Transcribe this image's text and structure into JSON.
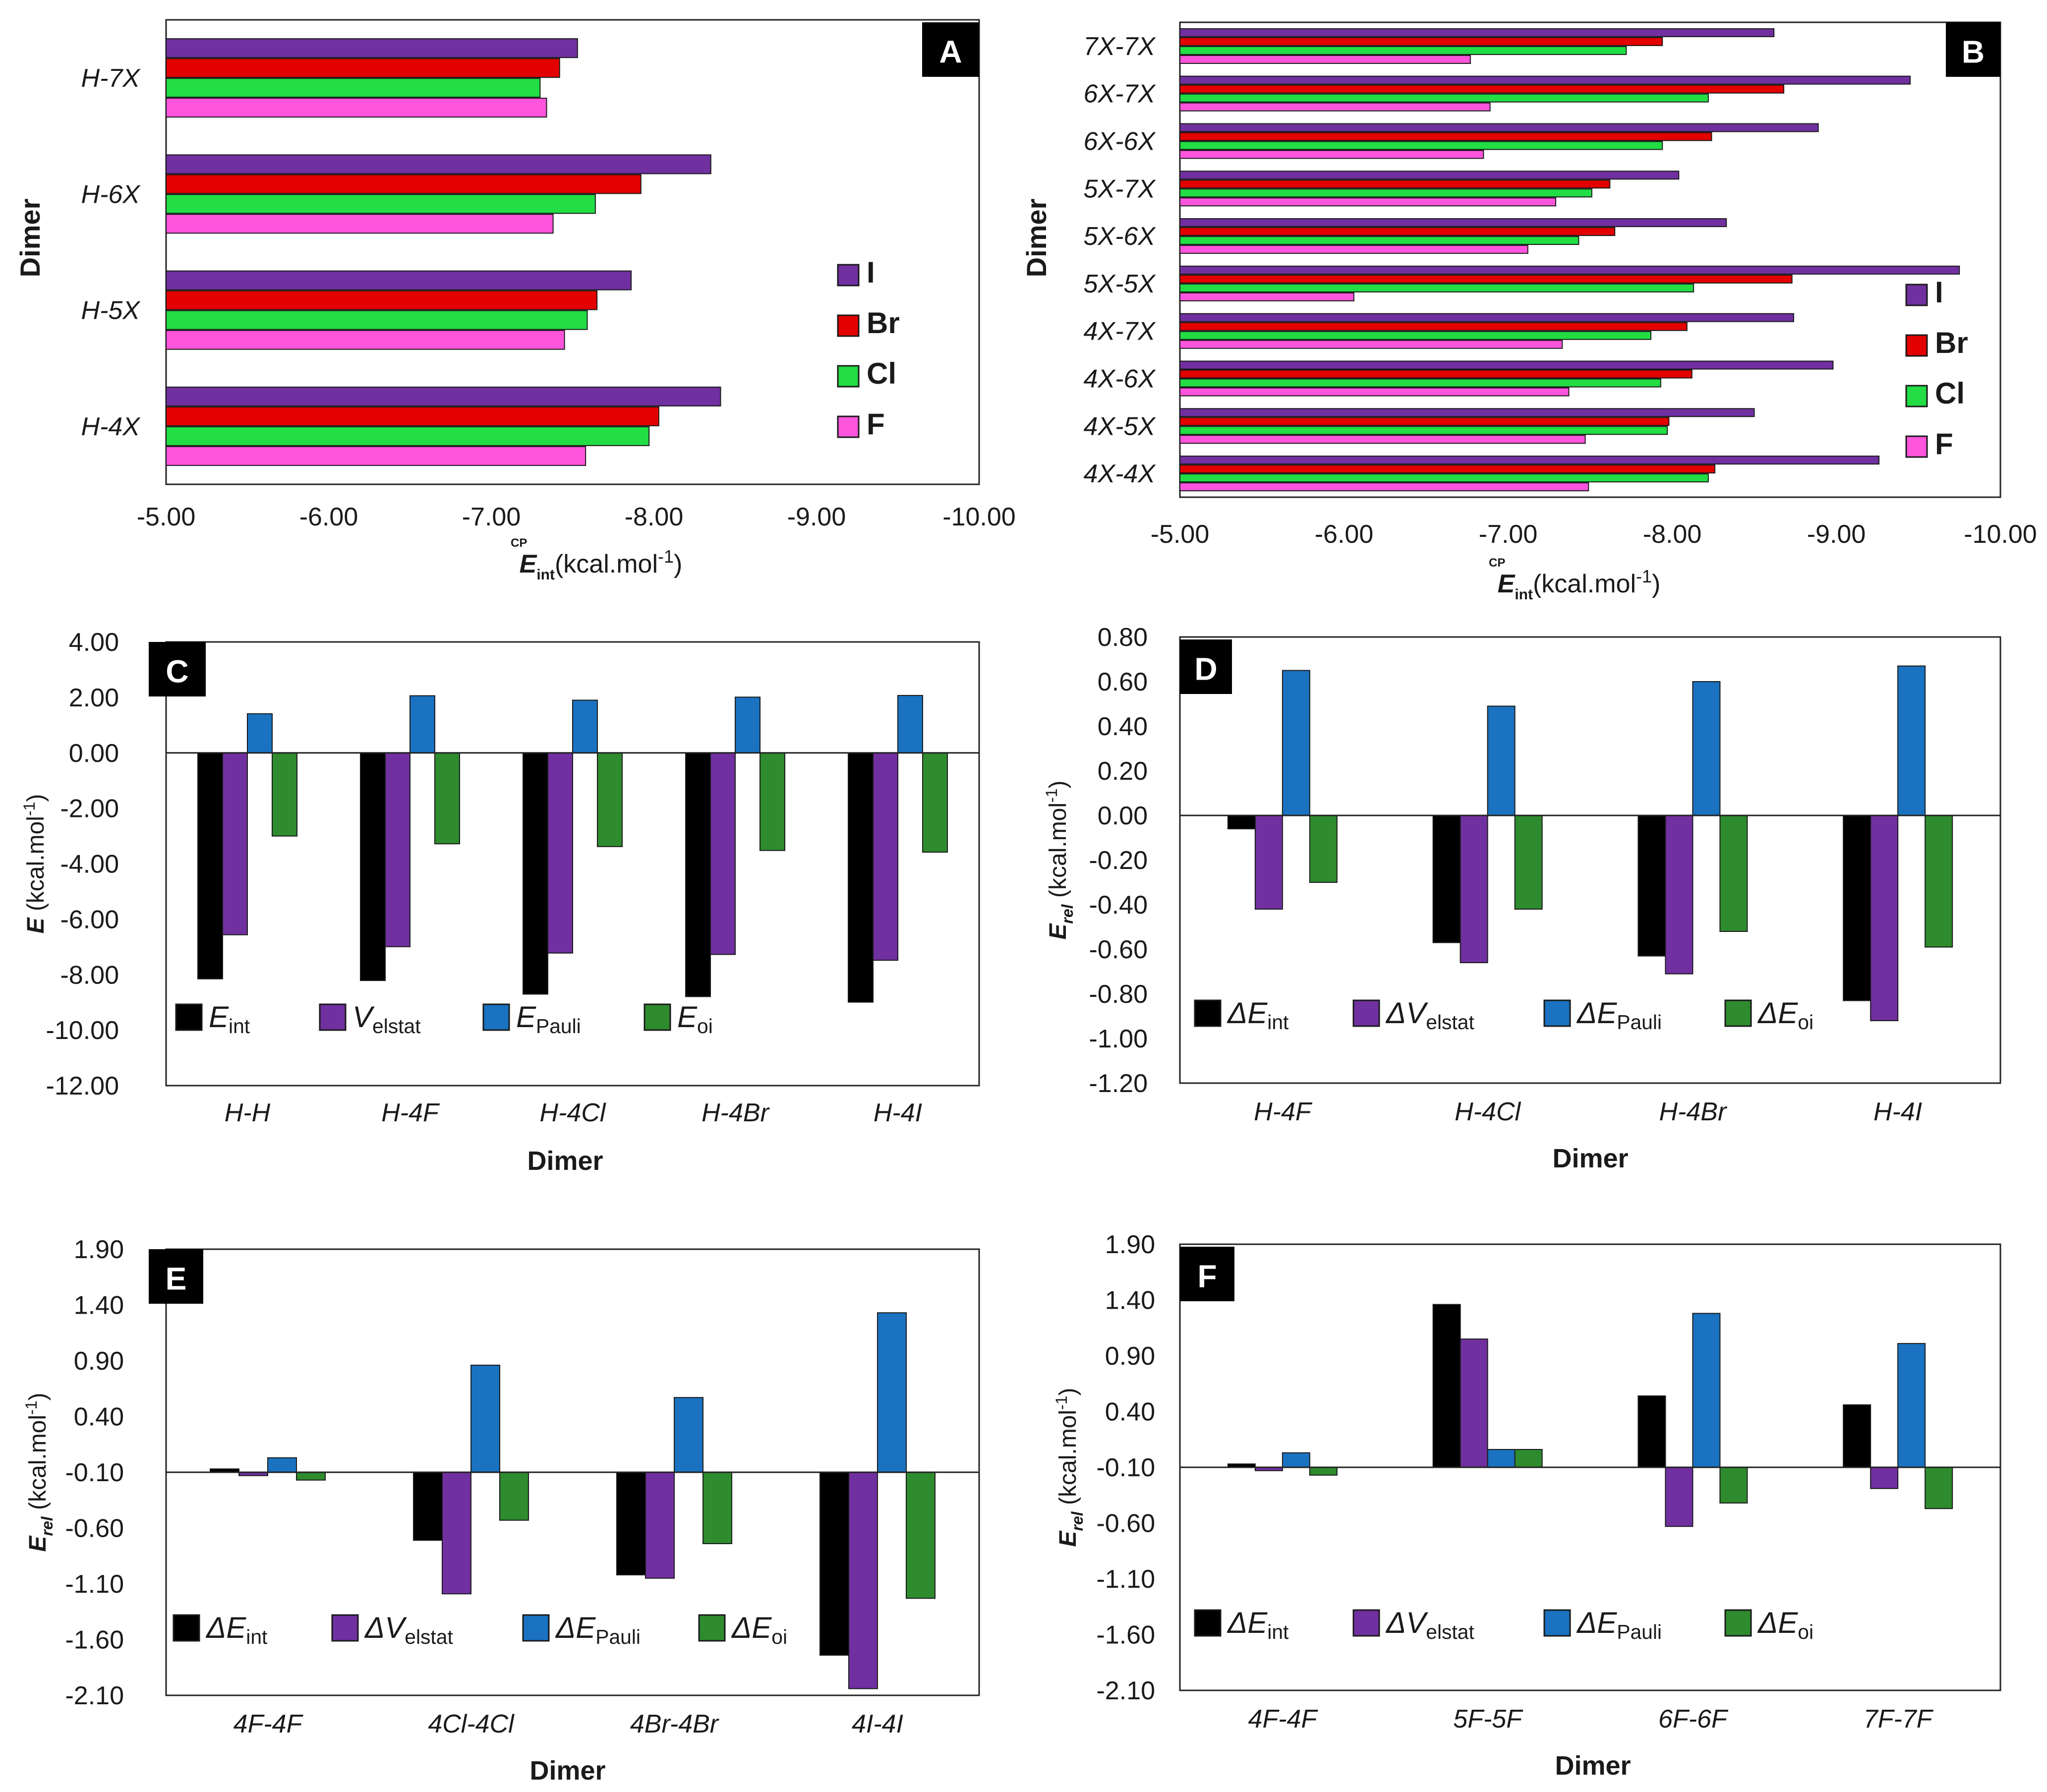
{
  "colors": {
    "I": "#7030a0",
    "Br": "#e20000",
    "Cl": "#22dd44",
    "F": "#ff55dd",
    "Eint": "#000000",
    "Velstat": "#7030a0",
    "EPauli": "#1a72c0",
    "Eoi": "#2e8b2e"
  },
  "chart_data": [
    {
      "id": "A",
      "panel_label": "A",
      "type": "bar",
      "orientation": "horizontal",
      "ylabel": "Dimer",
      "xlabel_main": "E",
      "xlabel_sup": "CP",
      "xlabel_sub": "int",
      "xlabel_unit": "(kcal.mol",
      "xlabel_exp": "-1",
      "xlabel_close": ")",
      "xlim": [
        -5,
        -10
      ],
      "ticks": [
        -5,
        -6,
        -7,
        -8,
        -9,
        -10
      ],
      "tick_labels": [
        "-5.00",
        "-6.00",
        "-7.00",
        "-8.00",
        "-9.00",
        "-10.00"
      ],
      "categories": [
        "H-7X",
        "H-6X",
        "H-5X",
        "H-4X"
      ],
      "series": [
        {
          "key": "I",
          "name": "I",
          "values": [
            -7.53,
            -8.35,
            -7.86,
            -8.41
          ]
        },
        {
          "key": "Br",
          "name": "Br",
          "values": [
            -7.42,
            -7.92,
            -7.65,
            -8.03
          ]
        },
        {
          "key": "Cl",
          "name": "Cl",
          "values": [
            -7.3,
            -7.64,
            -7.59,
            -7.97
          ]
        },
        {
          "key": "F",
          "name": "F",
          "values": [
            -7.34,
            -7.38,
            -7.45,
            -7.58
          ]
        }
      ]
    },
    {
      "id": "B",
      "panel_label": "B",
      "type": "bar",
      "orientation": "horizontal",
      "ylabel": "Dimer",
      "xlabel_main": "E",
      "xlabel_sup": "CP",
      "xlabel_sub": "int",
      "xlabel_unit": "(kcal.mol",
      "xlabel_exp": "-1",
      "xlabel_close": ")",
      "xlim": [
        -5,
        -10
      ],
      "ticks": [
        -5,
        -6,
        -7,
        -8,
        -9,
        -10
      ],
      "tick_labels": [
        "-5.00",
        "-6.00",
        "-7.00",
        "-8.00",
        "-9.00",
        "-10.00"
      ],
      "categories": [
        "7X-7X",
        "6X-7X",
        "6X-6X",
        "5X-7X",
        "5X-6X",
        "5X-5X",
        "4X-7X",
        "4X-6X",
        "4X-5X",
        "4X-4X"
      ],
      "series": [
        {
          "key": "I",
          "name": "I",
          "values": [
            -8.62,
            -9.45,
            -8.89,
            -8.04,
            -8.33,
            -9.75,
            -8.74,
            -8.98,
            -8.5,
            -9.26
          ]
        },
        {
          "key": "Br",
          "name": "Br",
          "values": [
            -7.94,
            -8.68,
            -8.24,
            -7.62,
            -7.65,
            -8.73,
            -8.09,
            -8.12,
            -7.98,
            -8.26
          ]
        },
        {
          "key": "Cl",
          "name": "Cl",
          "values": [
            -7.72,
            -8.22,
            -7.94,
            -7.51,
            -7.43,
            -8.13,
            -7.87,
            -7.93,
            -7.97,
            -8.22
          ]
        },
        {
          "key": "F",
          "name": "F",
          "values": [
            -6.77,
            -6.89,
            -6.85,
            -7.29,
            -7.12,
            -6.06,
            -7.33,
            -7.37,
            -7.47,
            -7.49
          ]
        }
      ]
    },
    {
      "id": "C",
      "panel_label": "C",
      "type": "bar",
      "orientation": "vertical",
      "ylabel_main": "E",
      "ylabel_unit": " (kcal.mol",
      "ylabel_exp": "-1",
      "ylabel_close": ")",
      "xlabel": "Dimer",
      "ylim": [
        -12,
        4
      ],
      "ticks": [
        -12,
        -10,
        -8,
        -6,
        -4,
        -2,
        0,
        2,
        4
      ],
      "tick_labels": [
        "-12.00",
        "-10.00",
        "-8.00",
        "-6.00",
        "-4.00",
        "-2.00",
        "0.00",
        "2.00",
        "4.00"
      ],
      "categories": [
        "H-H",
        "H-4F",
        "H-4Cl",
        "H-4Br",
        "H-4I"
      ],
      "series": [
        {
          "key": "Eint",
          "name": "E",
          "sub": "int",
          "values": [
            -8.15,
            -8.21,
            -8.7,
            -8.79,
            -8.99
          ]
        },
        {
          "key": "Velstat",
          "name": "V",
          "sub": "elstat",
          "values": [
            -6.56,
            -6.99,
            -7.22,
            -7.27,
            -7.48
          ]
        },
        {
          "key": "EPauli",
          "name": "E",
          "sub": "Pauli",
          "values": [
            1.41,
            2.06,
            1.9,
            2.01,
            2.07
          ]
        },
        {
          "key": "Eoi",
          "name": "E",
          "sub": "oi",
          "values": [
            -3.0,
            -3.28,
            -3.38,
            -3.52,
            -3.58
          ]
        }
      ]
    },
    {
      "id": "D",
      "panel_label": "D",
      "type": "bar",
      "orientation": "vertical",
      "ylabel_main": "E",
      "ylabel_sub": "rel",
      "ylabel_unit": " (kcal.mol",
      "ylabel_exp": "-1",
      "ylabel_close": ")",
      "xlabel": "Dimer",
      "ylim": [
        -1.2,
        0.8
      ],
      "ticks": [
        -1.2,
        -1.0,
        -0.8,
        -0.6,
        -0.4,
        -0.2,
        0,
        0.2,
        0.4,
        0.6,
        0.8
      ],
      "tick_labels": [
        "-1.20",
        "-1.00",
        "-0.80",
        "-0.60",
        "-0.40",
        "-0.20",
        "0.00",
        "0.20",
        "0.40",
        "0.60",
        "0.80"
      ],
      "categories": [
        "H-4F",
        "H-4Cl",
        "H-4Br",
        "H-4I"
      ],
      "series": [
        {
          "key": "Eint",
          "name": "ΔE",
          "sub": "int",
          "values": [
            -0.06,
            -0.57,
            -0.63,
            -0.83
          ]
        },
        {
          "key": "Velstat",
          "name": "ΔV",
          "sub": "elstat",
          "values": [
            -0.42,
            -0.66,
            -0.71,
            -0.92
          ]
        },
        {
          "key": "EPauli",
          "name": "ΔE",
          "sub": "Pauli",
          "values": [
            0.65,
            0.49,
            0.6,
            0.67
          ]
        },
        {
          "key": "Eoi",
          "name": "ΔE",
          "sub": "oi",
          "values": [
            -0.3,
            -0.42,
            -0.52,
            -0.59
          ]
        }
      ]
    },
    {
      "id": "E",
      "panel_label": "E",
      "type": "bar",
      "orientation": "vertical",
      "ylabel_main": "E",
      "ylabel_sub": "rel",
      "ylabel_unit": " (kcal.mol",
      "ylabel_exp": "-1",
      "ylabel_close": ")",
      "xlabel": "Dimer",
      "ylim": [
        -2.1,
        1.9
      ],
      "ticks": [
        -2.1,
        -1.6,
        -1.1,
        -0.6,
        -0.1,
        0.4,
        0.9,
        1.4,
        1.9
      ],
      "tick_labels": [
        "-2.10",
        "-1.60",
        "-1.10",
        "-0.60",
        "-0.10",
        "0.40",
        "0.90",
        "1.40",
        "1.90"
      ],
      "baseline": -0.1,
      "categories": [
        "4F-4F",
        "4Cl-4Cl",
        "4Br-4Br",
        "4I-4I"
      ],
      "series": [
        {
          "key": "Eint",
          "name": "ΔE",
          "sub": "int",
          "values": [
            -0.07,
            -0.71,
            -1.02,
            -1.74
          ]
        },
        {
          "key": "Velstat",
          "name": "ΔV",
          "sub": "elstat",
          "values": [
            -0.13,
            -1.19,
            -1.05,
            -2.04
          ]
        },
        {
          "key": "EPauli",
          "name": "ΔE",
          "sub": "Pauli",
          "values": [
            0.03,
            0.86,
            0.57,
            1.33
          ]
        },
        {
          "key": "Eoi",
          "name": "ΔE",
          "sub": "oi",
          "values": [
            -0.17,
            -0.53,
            -0.74,
            -1.23
          ]
        }
      ]
    },
    {
      "id": "F",
      "panel_label": "F",
      "type": "bar",
      "orientation": "vertical",
      "ylabel_main": "E",
      "ylabel_sub": "rel",
      "ylabel_unit": " (kcal.mol",
      "ylabel_exp": "-1",
      "ylabel_close": ")",
      "xlabel": "Dimer",
      "ylim": [
        -2.1,
        1.9
      ],
      "ticks": [
        -2.1,
        -1.6,
        -1.1,
        -0.6,
        -0.1,
        0.4,
        0.9,
        1.4,
        1.9
      ],
      "tick_labels": [
        "-2.10",
        "-1.60",
        "-1.10",
        "-0.60",
        "-0.10",
        "0.40",
        "0.90",
        "1.40",
        "1.90"
      ],
      "baseline": -0.1,
      "categories": [
        "4F-4F",
        "5F-5F",
        "6F-6F",
        "7F-7F"
      ],
      "series": [
        {
          "key": "Eint",
          "name": "ΔE",
          "sub": "int",
          "values": [
            -0.07,
            1.36,
            0.54,
            0.46
          ]
        },
        {
          "key": "Velstat",
          "name": "ΔV",
          "sub": "elstat",
          "values": [
            -0.13,
            1.05,
            -0.63,
            -0.29
          ]
        },
        {
          "key": "EPauli",
          "name": "ΔE",
          "sub": "Pauli",
          "values": [
            0.03,
            0.06,
            1.28,
            1.01
          ]
        },
        {
          "key": "Eoi",
          "name": "ΔE",
          "sub": "oi",
          "values": [
            -0.17,
            0.06,
            -0.42,
            -0.47
          ]
        }
      ]
    }
  ]
}
